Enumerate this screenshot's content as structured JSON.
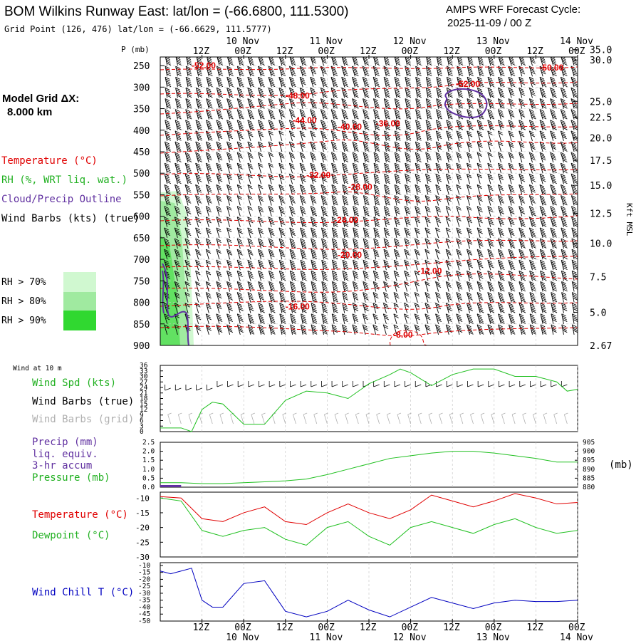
{
  "header": {
    "title": "BOM Wilkins Runway East:  lat/lon = (-66.6800, 111.5300)",
    "grid_point": "Grid Point (126, 476) lat/lon = (-66.6629, 111.5777)",
    "cycle_label": "AMPS WRF Forecast Cycle:",
    "cycle_value": "2025-11-09 / 00  Z"
  },
  "legend": {
    "model_grid_label": "Model Grid ΔX:",
    "model_grid_value": "8.000 km",
    "temperature": "Temperature (°C)",
    "rh": "RH (%, WRT liq. wat.)",
    "cloud": "Cloud/Precip Outline",
    "wind": "Wind Barbs (kts) (true)",
    "rh70": "RH > 70%",
    "rh80": "RH > 80%",
    "rh90": "RH > 90%"
  },
  "colors": {
    "temp": "#e00000",
    "rh70": "#d0f8d0",
    "rh80": "#a0eaa0",
    "rh90": "#30d830",
    "cloud": "#6030a0",
    "green": "#20c020",
    "blue": "#0000c0",
    "grey": "#b0b0b0"
  },
  "top_axis": {
    "p_label": "P (mb)",
    "right_label": "Kft MSL",
    "time_ticks": [
      "12Z",
      "00Z",
      "12Z",
      "00Z",
      "12Z",
      "00Z",
      "12Z",
      "00Z",
      "12Z",
      "00Z"
    ],
    "dates": [
      {
        "label": "10 Nov",
        "tick": 1
      },
      {
        "label": "11 Nov",
        "tick": 3
      },
      {
        "label": "12 Nov",
        "tick": 5
      },
      {
        "label": "13 Nov",
        "tick": 7
      },
      {
        "label": "14 Nov",
        "tick": 9
      }
    ]
  },
  "bottom_axis": {
    "time_ticks": [
      "12Z",
      "00Z",
      "12Z",
      "00Z",
      "12Z",
      "00Z",
      "12Z",
      "00Z",
      "12Z",
      "00Z"
    ],
    "dates": [
      {
        "label": "10 Nov",
        "tick": 1
      },
      {
        "label": "11 Nov",
        "tick": 3
      },
      {
        "label": "12 Nov",
        "tick": 5
      },
      {
        "label": "13 Nov",
        "tick": 7
      },
      {
        "label": "14 Nov",
        "tick": 9
      }
    ]
  },
  "panel_labels": {
    "wind10": "Wind at 10 m",
    "wind_spd": "Wind Spd (kts)",
    "barbs_true": "Wind Barbs (true)",
    "barbs_grid": "Wind Barbs (grid)",
    "precip1": "Precip (mm)",
    "precip2": "liq. equiv.",
    "precip3": "3-hr accum",
    "pressure": "Pressure (mb)",
    "pressure_unit": "(mb)",
    "temperature": "Temperature (°C)",
    "dewpoint": "Dewpoint (°C)",
    "windchill": "Wind Chill T (°C)"
  },
  "chart_data": [
    {
      "type": "contour",
      "name": "vertical-cross-section",
      "title": "BOM Wilkins Runway East",
      "ylabel": "P (mb)",
      "y2label": "Kft MSL",
      "pressure_ticks": [
        250,
        300,
        350,
        400,
        450,
        500,
        550,
        600,
        650,
        700,
        750,
        800,
        850,
        900
      ],
      "height_ticks": [
        "35.0",
        "30.0",
        "25.0",
        "22.5",
        "20.0",
        "17.5",
        "15.0",
        "12.5",
        "10.0",
        "7.5",
        "5.0",
        "2.67"
      ],
      "height_tick_pressures": [
        213,
        237,
        333,
        370,
        418,
        470,
        528,
        593,
        663,
        740,
        823,
        900
      ],
      "x_hours": [
        0,
        120
      ],
      "temperature_contours": [
        {
          "label": "-52.00",
          "hour": 9,
          "p": 250
        },
        {
          "label": "-50.00",
          "hour": 109,
          "p": 255
        },
        {
          "label": "-52.00",
          "hour": 85,
          "p": 293
        },
        {
          "label": "-48.00",
          "hour": 36,
          "p": 320
        },
        {
          "label": "-44.00",
          "hour": 38,
          "p": 377
        },
        {
          "label": "-40.00",
          "hour": 51,
          "p": 392
        },
        {
          "label": "-36.00",
          "hour": 62,
          "p": 385
        },
        {
          "label": "-32.00",
          "hour": 42,
          "p": 505
        },
        {
          "label": "-28.00",
          "hour": 54,
          "p": 532
        },
        {
          "label": "-24.00",
          "hour": 50,
          "p": 609
        },
        {
          "label": "-20.00",
          "hour": 51,
          "p": 690
        },
        {
          "label": "-16.00",
          "hour": 36,
          "p": 810
        },
        {
          "label": "-12.00",
          "hour": 74,
          "p": 727
        },
        {
          "label": "-8.00",
          "hour": 67,
          "p": 875
        }
      ]
    },
    {
      "type": "line",
      "name": "wind-speed-10m",
      "ylabel": "Wind Spd (kts)",
      "yticks": [
        0,
        3,
        6,
        9,
        12,
        15,
        18,
        21,
        24,
        27,
        30,
        33,
        36
      ],
      "ylim": [
        0,
        36
      ],
      "x": [
        0,
        6,
        9,
        12,
        15,
        18,
        24,
        30,
        36,
        42,
        48,
        54,
        60,
        66,
        69,
        72,
        78,
        84,
        90,
        96,
        102,
        108,
        114,
        117,
        120
      ],
      "values": [
        2,
        2,
        0,
        12,
        16,
        15,
        4,
        4,
        17,
        22,
        21,
        18,
        26,
        31,
        34,
        32,
        25,
        31,
        34,
        34,
        30,
        30,
        27,
        22,
        23
      ]
    },
    {
      "type": "line",
      "name": "pressure-precip",
      "ylabel": "Precip (mm)",
      "yticks": [
        0.0,
        0.5,
        1.0,
        1.5,
        2.0,
        2.5
      ],
      "ylim": [
        0,
        2.5
      ],
      "y2ticks": [
        880,
        885,
        890,
        895,
        900,
        905
      ],
      "y2lim": [
        880,
        905
      ],
      "precip_bar": {
        "start_hour": 0,
        "end_hour": 6,
        "value": 0.12
      },
      "x": [
        0,
        6,
        12,
        18,
        24,
        30,
        36,
        42,
        48,
        54,
        60,
        66,
        72,
        78,
        84,
        90,
        96,
        102,
        108,
        114,
        120
      ],
      "values": [
        882.5,
        882.5,
        882,
        882,
        882.5,
        883,
        883.5,
        884.5,
        887,
        890,
        893,
        896,
        897.5,
        899,
        900,
        900,
        899,
        897.5,
        896,
        894,
        894
      ]
    },
    {
      "type": "line",
      "name": "temperature-dewpoint",
      "yticks": [
        -10,
        -15,
        -20,
        -25,
        -30
      ],
      "ylim": [
        -30,
        -8
      ],
      "x": [
        0,
        6,
        12,
        18,
        24,
        30,
        36,
        42,
        48,
        54,
        60,
        66,
        72,
        78,
        84,
        90,
        96,
        102,
        108,
        114,
        120
      ],
      "series": [
        {
          "name": "Temperature",
          "values": [
            -9.5,
            -10,
            -17,
            -18,
            -15,
            -13,
            -18,
            -19,
            -15,
            -12,
            -15,
            -17,
            -14,
            -9,
            -11,
            -13,
            -11,
            -8.5,
            -10,
            -12,
            -11.5
          ]
        },
        {
          "name": "Dewpoint",
          "values": [
            -10,
            -11,
            -21,
            -23,
            -21,
            -20,
            -24,
            -26,
            -20,
            -18,
            -23,
            -26,
            -20,
            -18,
            -20,
            -22,
            -19,
            -17,
            -20,
            -22,
            -21
          ]
        }
      ]
    },
    {
      "type": "line",
      "name": "wind-chill",
      "ylabel": "Wind Chill T (°C)",
      "yticks": [
        -10,
        -15,
        -20,
        -25,
        -30,
        -35,
        -40,
        -45,
        -50
      ],
      "ylim": [
        -50,
        -8
      ],
      "x": [
        0,
        3,
        6,
        9,
        12,
        15,
        18,
        24,
        30,
        36,
        42,
        48,
        54,
        60,
        66,
        72,
        78,
        84,
        90,
        96,
        102,
        108,
        114,
        120
      ],
      "values": [
        -14,
        -16,
        -14,
        -12,
        -35,
        -40,
        -40,
        -23,
        -21,
        -43,
        -47,
        -43,
        -35,
        -42,
        -47,
        -40,
        -33,
        -37,
        -41,
        -37,
        -35,
        -36,
        -36,
        -35
      ]
    }
  ]
}
